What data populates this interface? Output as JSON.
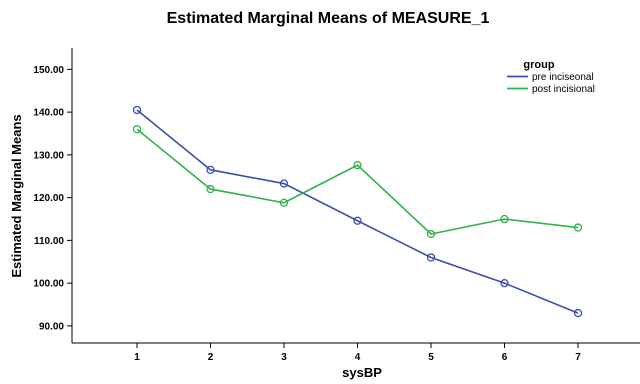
{
  "chart_data": {
    "type": "line",
    "title": "Estimated Marginal Means of MEASURE_1",
    "xlabel": "sysBP",
    "ylabel": "Estimated Marginal Means",
    "categories": [
      "1",
      "2",
      "3",
      "4",
      "5",
      "6",
      "7"
    ],
    "ylim": [
      86,
      155
    ],
    "yticks": [
      "90.00",
      "100.00",
      "110.00",
      "120.00",
      "130.00",
      "140.00",
      "150.00"
    ],
    "grid": false,
    "legend_title": "group",
    "legend_position": "top-right",
    "series": [
      {
        "name": "pre inciseonal",
        "color": "#3a4fa8",
        "values": [
          140.5,
          126.5,
          123.3,
          114.6,
          106.0,
          100.0,
          93.0
        ]
      },
      {
        "name": "post incisional",
        "color": "#2fb34a",
        "values": [
          136.0,
          122.0,
          118.8,
          127.6,
          111.5,
          115.0,
          113.0
        ]
      }
    ]
  }
}
